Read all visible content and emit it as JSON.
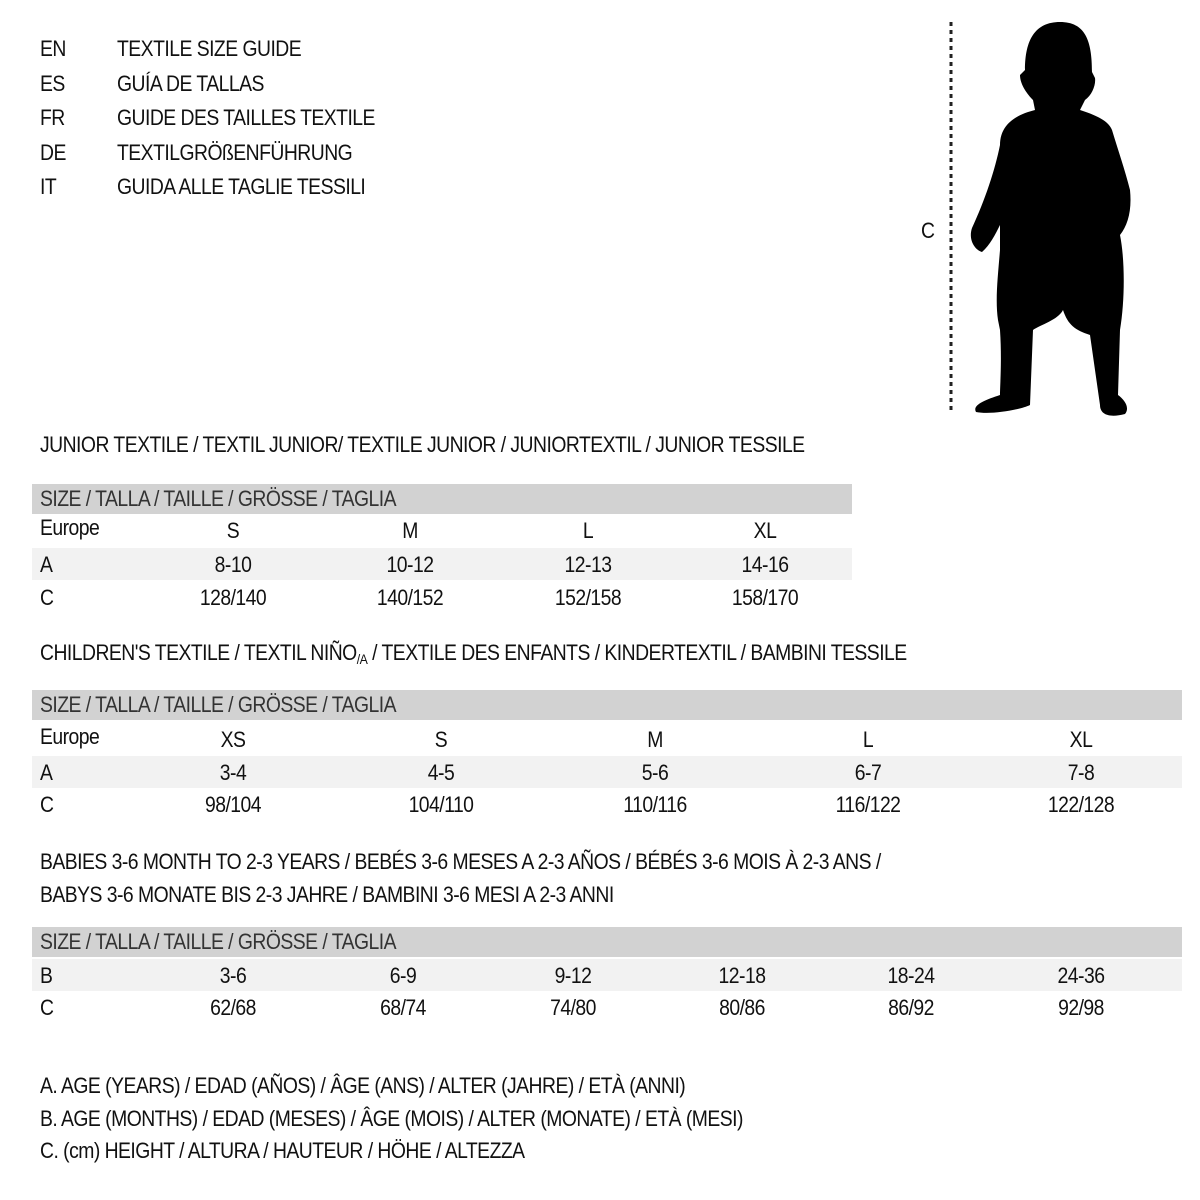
{
  "title_lines": [
    {
      "lang": "EN",
      "text": "TEXTILE SIZE GUIDE"
    },
    {
      "lang": "ES",
      "text": "GUÍA DE TALLAS"
    },
    {
      "lang": "FR",
      "text": "GUIDE DES TAILLES TEXTILE"
    },
    {
      "lang": "DE",
      "text": "TEXTILGRÖßENFÜHRUNG"
    },
    {
      "lang": "IT",
      "text": "GUIDA ALLE TAGLIE TESSILI"
    }
  ],
  "figure": {
    "measure_label": "C",
    "icon": "baby-silhouette-icon"
  },
  "tables": [
    {
      "title": "JUNIOR TEXTILE / TEXTIL JUNIOR/ TEXTILE JUNIOR / JUNIORTEXTIL / JUNIOR TESSILE",
      "header": "SIZE / TALLA / TAILLE / GRÖSSE / TAGLIA",
      "rows": [
        {
          "label": "Europe",
          "values": [
            "S",
            "M",
            "L",
            "XL"
          ]
        },
        {
          "label": "A",
          "values": [
            "8-10",
            "10-12",
            "12-13",
            "14-16"
          ]
        },
        {
          "label": "C",
          "values": [
            "128/140",
            "140/152",
            "152/158",
            "158/170"
          ]
        }
      ]
    },
    {
      "title_pre": "CHILDREN'S TEXTILE / TEXTIL NIÑO",
      "title_sub": "/A",
      "title_post": " / TEXTILE DES ENFANTS / KINDERTEXTIL / BAMBINI TESSILE",
      "header": "SIZE / TALLA / TAILLE / GRÖSSE / TAGLIA",
      "rows": [
        {
          "label": "Europe",
          "values": [
            "XS",
            "S",
            "M",
            "L",
            "XL"
          ]
        },
        {
          "label": "A",
          "values": [
            "3-4",
            "4-5",
            "5-6",
            "6-7",
            "7-8"
          ]
        },
        {
          "label": "C",
          "values": [
            "98/104",
            "104/110",
            "110/116",
            "116/122",
            "122/128"
          ]
        }
      ]
    },
    {
      "title_line1": "BABIES 3-6 MONTH TO 2-3 YEARS / BEBÉS 3-6 MESES A 2-3 AÑOS / BÉBÉS 3-6 MOIS À 2-3 ANS /",
      "title_line2": "BABYS 3-6 MONATE BIS 2-3 JAHRE / BAMBINI 3-6 MESI A 2-3 ANNI",
      "header": "SIZE / TALLA / TAILLE / GRÖSSE / TAGLIA",
      "rows": [
        {
          "label": "B",
          "values": [
            "3-6",
            "6-9",
            "9-12",
            "12-18",
            "18-24",
            "24-36"
          ]
        },
        {
          "label": "C",
          "values": [
            "62/68",
            "68/74",
            "74/80",
            "80/86",
            "86/92",
            "92/98"
          ]
        }
      ]
    }
  ],
  "legend": [
    "A. AGE (YEARS) / EDAD (AÑOS) / ÂGE (ANS) / ALTER (JAHRE) / ETÀ (ANNI)",
    "B. AGE (MONTHS) / EDAD (MESES) / ÂGE (MOIS) / ALTER (MONATE) / ETÀ (MESI)",
    "C. (cm) HEIGHT / ALTURA / HAUTEUR / HÖHE / ALTEZZA"
  ],
  "colors": {
    "header_bar": "#d2d2d2",
    "row_shade": "#f2f2f2",
    "text": "#111111"
  }
}
